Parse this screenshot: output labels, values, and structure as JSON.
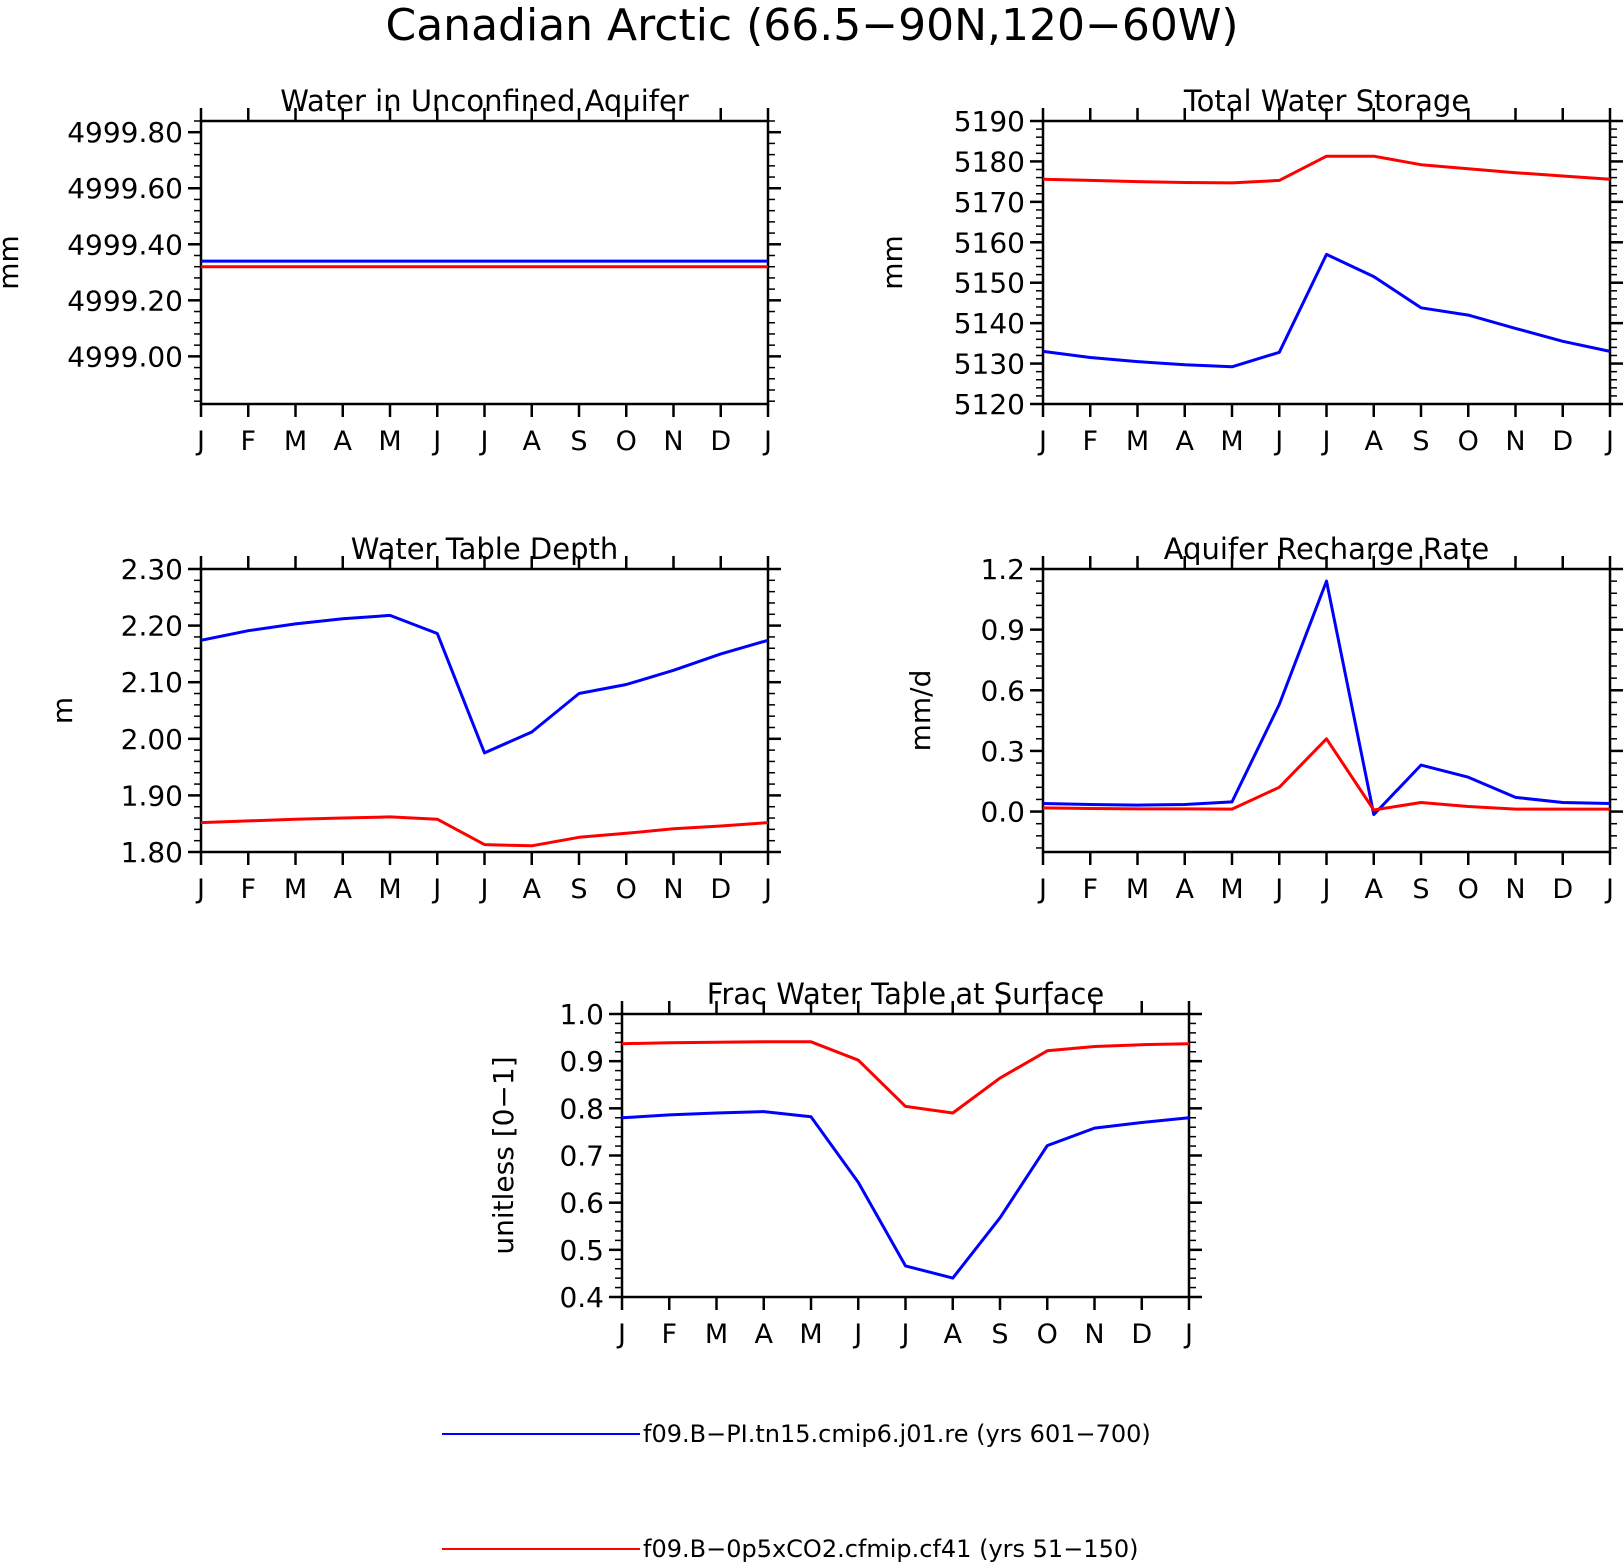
{
  "figure": {
    "title": "Canadian Arctic (66.5−90N,120−60W)"
  },
  "colors": {
    "series_1": "#0000ff",
    "series_2": "#ff0000",
    "axis": "#000000"
  },
  "legend": {
    "items": [
      {
        "label": "f09.B−PI.tn15.cmip6.j01.re (yrs 601−700)",
        "color": "#0000ff"
      },
      {
        "label": "f09.B−0p5xCO2.cfmip.cf41 (yrs 51−150)",
        "color": "#ff0000"
      }
    ]
  },
  "chart_data": [
    {
      "type": "line",
      "title": "Water in Unconfined Aquifer",
      "xlabel": "",
      "ylabel": "mm",
      "x_tick_labels": [
        "J",
        "F",
        "M",
        "A",
        "M",
        "J",
        "J",
        "A",
        "S",
        "O",
        "N",
        "D",
        "J"
      ],
      "yticks": [
        4999.0,
        4999.2,
        4999.4,
        4999.6,
        4999.8
      ],
      "ytick_labels": [
        "4999.00",
        "4999.20",
        "4999.40",
        "4999.60",
        "4999.80"
      ],
      "ylim": [
        4998.83,
        4999.84
      ],
      "series": [
        {
          "values": [
            4999.34,
            4999.34,
            4999.34,
            4999.34,
            4999.34,
            4999.34,
            4999.34,
            4999.34,
            4999.34,
            4999.34,
            4999.34,
            4999.34,
            4999.34
          ]
        },
        {
          "values": [
            4999.32,
            4999.32,
            4999.32,
            4999.32,
            4999.32,
            4999.32,
            4999.32,
            4999.32,
            4999.32,
            4999.32,
            4999.32,
            4999.32,
            4999.32
          ]
        }
      ]
    },
    {
      "type": "line",
      "title": "Total Water Storage",
      "xlabel": "",
      "ylabel": "mm",
      "x_tick_labels": [
        "J",
        "F",
        "M",
        "A",
        "M",
        "J",
        "J",
        "A",
        "S",
        "O",
        "N",
        "D",
        "J"
      ],
      "yticks": [
        5120,
        5130,
        5140,
        5150,
        5160,
        5170,
        5180,
        5190
      ],
      "ytick_labels": [
        "5120",
        "5130",
        "5140",
        "5150",
        "5160",
        "5170",
        "5180",
        "5190"
      ],
      "ylim": [
        5120,
        5190
      ],
      "series": [
        {
          "values": [
            5133,
            5131.5,
            5130.5,
            5129.7,
            5129.2,
            5132.8,
            5157,
            5151.5,
            5143.8,
            5142,
            5138.7,
            5135.5,
            5133
          ]
        },
        {
          "values": [
            5175.6,
            5175.3,
            5175.0,
            5174.8,
            5174.7,
            5175.3,
            5181.3,
            5181.3,
            5179.2,
            5178.2,
            5177.2,
            5176.4,
            5175.6
          ]
        }
      ]
    },
    {
      "type": "line",
      "title": "Water Table Depth",
      "xlabel": "",
      "ylabel": "m",
      "x_tick_labels": [
        "J",
        "F",
        "M",
        "A",
        "M",
        "J",
        "J",
        "A",
        "S",
        "O",
        "N",
        "D",
        "J"
      ],
      "yticks": [
        1.8,
        1.9,
        2.0,
        2.1,
        2.2,
        2.3
      ],
      "ytick_labels": [
        "1.80",
        "1.90",
        "2.00",
        "2.10",
        "2.20",
        "2.30"
      ],
      "ylim": [
        1.8,
        2.3
      ],
      "series": [
        {
          "values": [
            2.174,
            2.191,
            2.203,
            2.212,
            2.218,
            2.186,
            1.975,
            2.012,
            2.08,
            2.096,
            2.121,
            2.15,
            2.174
          ]
        },
        {
          "values": [
            1.852,
            1.855,
            1.858,
            1.86,
            1.862,
            1.858,
            1.813,
            1.811,
            1.826,
            1.833,
            1.841,
            1.846,
            1.852
          ]
        }
      ]
    },
    {
      "type": "line",
      "title": "Aquifer Recharge Rate",
      "xlabel": "",
      "ylabel": "mm/d",
      "x_tick_labels": [
        "J",
        "F",
        "M",
        "A",
        "M",
        "J",
        "J",
        "A",
        "S",
        "O",
        "N",
        "D",
        "J"
      ],
      "yticks": [
        0.0,
        0.3,
        0.6,
        0.9,
        1.2
      ],
      "ytick_labels": [
        "0.0",
        "0.3",
        "0.6",
        "0.9",
        "1.2"
      ],
      "ylim": [
        -0.2,
        1.2
      ],
      "series": [
        {
          "values": [
            0.04,
            0.035,
            0.032,
            0.035,
            0.048,
            0.53,
            1.14,
            -0.015,
            0.23,
            0.17,
            0.07,
            0.045,
            0.04
          ]
        },
        {
          "values": [
            0.018,
            0.015,
            0.013,
            0.013,
            0.012,
            0.12,
            0.36,
            0.008,
            0.045,
            0.025,
            0.012,
            0.012,
            0.012
          ]
        }
      ]
    },
    {
      "type": "line",
      "title": "Frac Water Table at Surface",
      "xlabel": "",
      "ylabel": "unitless [0−1]",
      "x_tick_labels": [
        "J",
        "F",
        "M",
        "A",
        "M",
        "J",
        "J",
        "A",
        "S",
        "O",
        "N",
        "D",
        "J"
      ],
      "yticks": [
        0.4,
        0.5,
        0.6,
        0.7,
        0.8,
        0.9,
        1.0
      ],
      "ytick_labels": [
        "0.4",
        "0.5",
        "0.6",
        "0.7",
        "0.8",
        "0.9",
        "1.0"
      ],
      "ylim": [
        0.4,
        1.0
      ],
      "series": [
        {
          "values": [
            0.78,
            0.786,
            0.79,
            0.793,
            0.782,
            0.643,
            0.466,
            0.44,
            0.568,
            0.721,
            0.758,
            0.77,
            0.78
          ]
        },
        {
          "values": [
            0.937,
            0.939,
            0.94,
            0.941,
            0.941,
            0.902,
            0.804,
            0.79,
            0.864,
            0.922,
            0.931,
            0.935,
            0.937
          ]
        }
      ]
    }
  ]
}
